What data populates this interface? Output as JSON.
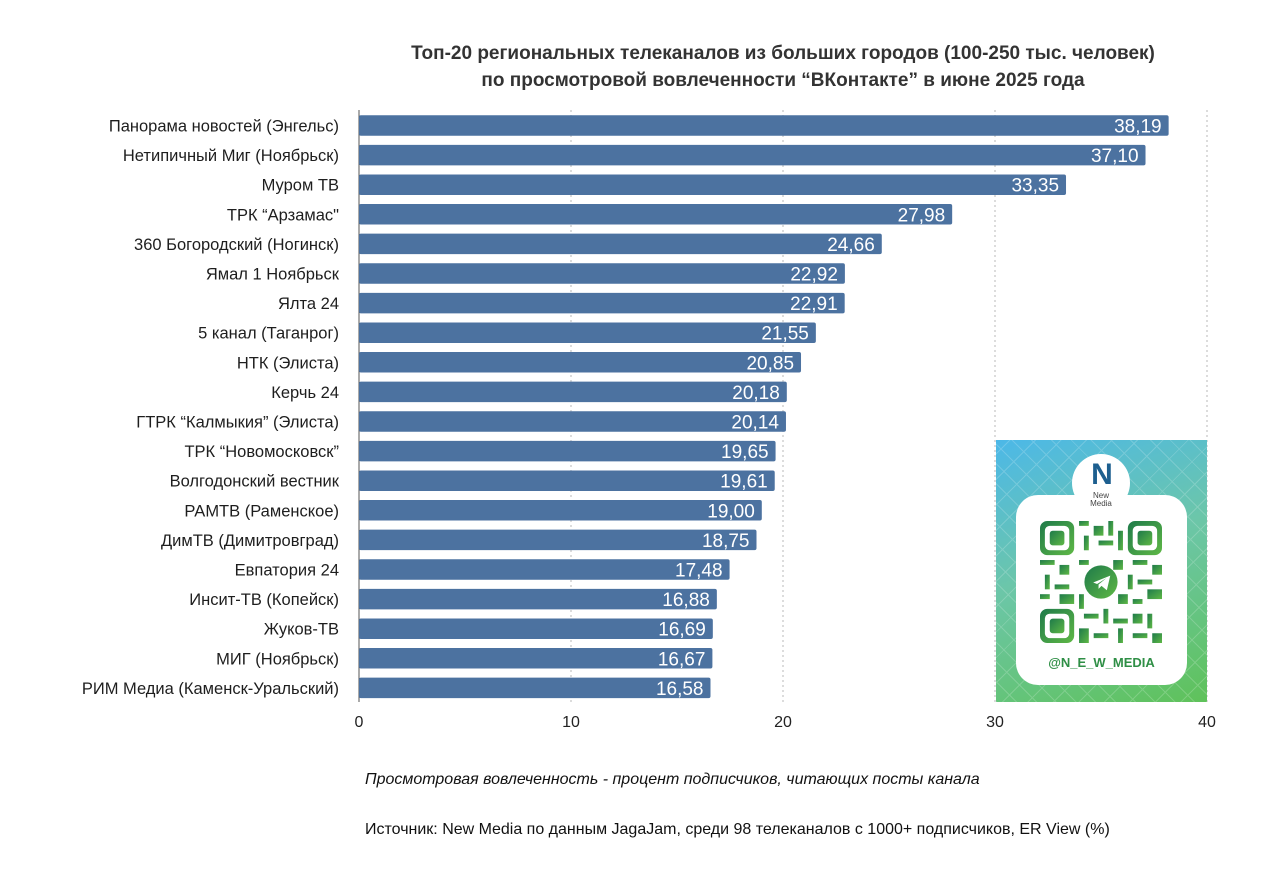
{
  "chart_data": {
    "type": "bar",
    "orientation": "horizontal",
    "title_line1": "Топ-20 региональных телеканалов из больших городов (100-250 тыс. человек)",
    "title_line2": "по просмотровой вовлеченности “ВКонтакте” в июне 2025 года",
    "categories": [
      "Панорама новостей (Энгельс)",
      "Нетипичный Миг (Ноябрьск)",
      "Муром ТВ",
      "ТРК “Арзамас\"",
      "360 Богородский (Ногинск)",
      "Ямал 1 Ноябрьск",
      "Ялта 24",
      "5 канал (Таганрог)",
      "НТК (Элиста)",
      "Керчь 24",
      "ГТРК “Калмыкия” (Элиста)",
      "ТРК “Новомосковск”",
      "Волгодонский вестник",
      "РАМТВ (Раменское)",
      "ДимТВ (Димитровград)",
      "Евпатория 24",
      "Инсит-ТВ (Копейск)",
      "Жуков-ТВ",
      "МИГ (Ноябрьск)",
      "РИМ Медиа (Каменск-Уральский)"
    ],
    "values": [
      38.19,
      37.1,
      33.35,
      27.98,
      24.66,
      22.92,
      22.91,
      21.55,
      20.85,
      20.18,
      20.14,
      19.65,
      19.61,
      19.0,
      18.75,
      17.48,
      16.88,
      16.69,
      16.67,
      16.58
    ],
    "value_labels": [
      "38,19",
      "37,10",
      "33,35",
      "27,98",
      "24,66",
      "22,92",
      "22,91",
      "21,55",
      "20,85",
      "20,18",
      "20,14",
      "19,65",
      "19,61",
      "19,00",
      "18,75",
      "17,48",
      "16,88",
      "16,69",
      "16,67",
      "16,58"
    ],
    "xlim": [
      0,
      40
    ],
    "x_ticks": [
      0,
      10,
      20,
      30,
      40
    ],
    "grid": "vertical-dotted",
    "bar_color": "#4c72a0",
    "label_color": "#ffffff"
  },
  "notes": {
    "definition": "Просмотровая вовлеченность - процент подписчиков, читающих посты канала",
    "source": "Источник: New Media по данным JagaJam, среди 98 телеканалов с 1000+ подписчиков, ER View (%)"
  },
  "qr_card": {
    "logo_letter": "N",
    "logo_line1": "New",
    "logo_line2": "Media",
    "handle": "@N_E_W_MEDIA",
    "icon": "telegram-qr-icon"
  }
}
